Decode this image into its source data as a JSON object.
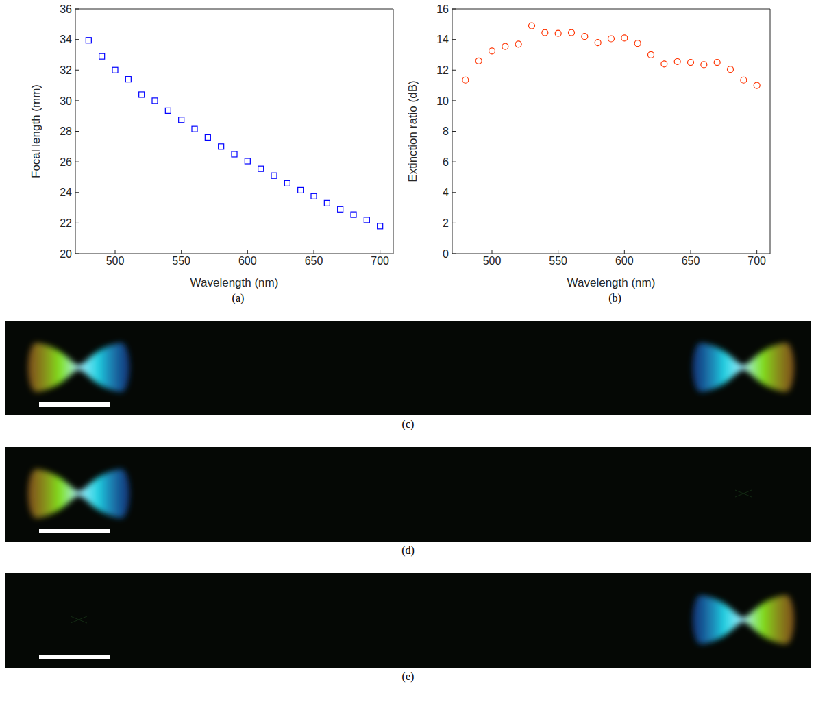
{
  "chart_data": [
    {
      "type": "scatter",
      "title": "(a)",
      "x_label": "Wavelength (nm)",
      "y_label": "Focal length (mm)",
      "x": [
        480,
        490,
        500,
        510,
        520,
        530,
        540,
        550,
        560,
        570,
        580,
        590,
        600,
        610,
        620,
        630,
        640,
        650,
        660,
        670,
        680,
        690,
        700
      ],
      "values": [
        33.95,
        32.9,
        32.0,
        31.4,
        30.4,
        30.0,
        29.35,
        28.75,
        28.15,
        27.6,
        27.0,
        26.5,
        26.05,
        25.55,
        25.1,
        24.6,
        24.15,
        23.75,
        23.3,
        22.9,
        22.55,
        22.2,
        21.8
      ],
      "color": "#0000ff",
      "marker": "square",
      "xlim": [
        470,
        710
      ],
      "xticks": [
        500,
        550,
        600,
        650,
        700
      ],
      "ylim": [
        20,
        36
      ],
      "yticks": [
        20,
        22,
        24,
        26,
        28,
        30,
        32,
        34,
        36
      ]
    },
    {
      "type": "scatter",
      "title": "(b)",
      "x_label": "Wavelength (nm)",
      "y_label": "Extinction ratio (dB)",
      "x": [
        480,
        490,
        500,
        510,
        520,
        530,
        540,
        550,
        560,
        570,
        580,
        590,
        600,
        610,
        620,
        630,
        640,
        650,
        660,
        670,
        680,
        690,
        700
      ],
      "values": [
        11.35,
        12.6,
        13.25,
        13.55,
        13.7,
        14.9,
        14.45,
        14.4,
        14.45,
        14.2,
        13.8,
        14.05,
        14.1,
        13.75,
        13.0,
        12.4,
        12.55,
        12.5,
        12.35,
        12.5,
        12.05,
        11.35,
        11.0
      ],
      "color": "#ff3300",
      "marker": "circle",
      "xlim": [
        470,
        710
      ],
      "xticks": [
        500,
        550,
        600,
        650,
        700
      ],
      "ylim": [
        0,
        16
      ],
      "yticks": [
        0,
        2,
        4,
        6,
        8,
        10,
        12,
        14,
        16
      ]
    }
  ],
  "images": [
    {
      "label": "(c)"
    },
    {
      "label": "(d)"
    },
    {
      "label": "(e)"
    }
  ]
}
